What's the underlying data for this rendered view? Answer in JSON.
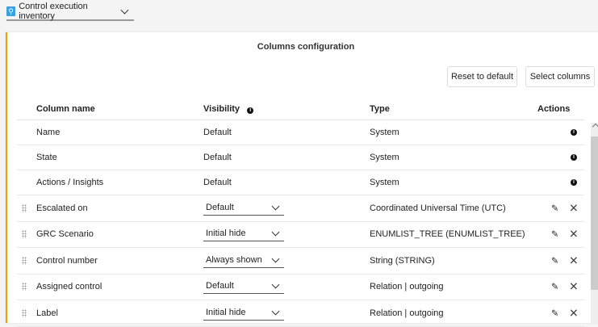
{
  "view": {
    "label": "Control execution inventory",
    "icon": "search-icon"
  },
  "panel": {
    "title": "Columns configuration",
    "reset": "Reset to default",
    "select": "Select columns"
  },
  "headers": {
    "name": "Column name",
    "visibility": "Visibility",
    "type": "Type",
    "actions": "Actions"
  },
  "fixed_rows": [
    {
      "name": "Name",
      "visibility": "Default",
      "type": "System"
    },
    {
      "name": "State",
      "visibility": "Default",
      "type": "System"
    },
    {
      "name": "Actions / Insights",
      "visibility": "Default",
      "type": "System"
    }
  ],
  "rows": [
    {
      "name": "Escalated on",
      "visibility": "Default",
      "type": "Coordinated Universal Time (UTC)"
    },
    {
      "name": "GRC Scenario",
      "visibility": "Initial hide",
      "type": "ENUMLIST_TREE (ENUMLIST_TREE)"
    },
    {
      "name": "Control number",
      "visibility": "Always shown",
      "type": "String (STRING)"
    },
    {
      "name": "Assigned control",
      "visibility": "Default",
      "type": "Relation | outgoing"
    },
    {
      "name": "Label",
      "visibility": "Initial hide",
      "type": "Relation | outgoing"
    }
  ],
  "colors": {
    "accent": "#f5a000"
  }
}
